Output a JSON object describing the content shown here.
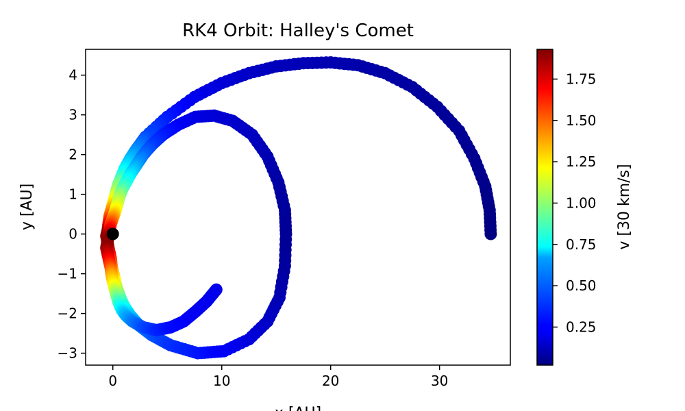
{
  "chart_data": {
    "type": "scatter",
    "title": "RK4 Orbit: Halley's Comet",
    "xlabel": "x [AU]",
    "ylabel": "y [AU]",
    "xlim": [
      -2.5,
      36.5
    ],
    "ylim": [
      -3.3,
      4.65
    ],
    "xticks": [
      0,
      10,
      20,
      30
    ],
    "yticks": [
      -3,
      -2,
      -1,
      0,
      1,
      2,
      3,
      4
    ],
    "grid": false,
    "colormap": "jet",
    "colorbar": {
      "label": "v [30 km/s]",
      "range": [
        0.02,
        1.93
      ],
      "ticks": [
        "0.25",
        "0.50",
        "0.75",
        "1.00",
        "1.25",
        "1.50",
        "1.75"
      ],
      "tick_values": [
        0.25,
        0.5,
        0.75,
        1.0,
        1.25,
        1.5,
        1.75
      ]
    },
    "sun": {
      "x": 0.0,
      "y": 0.0,
      "color": "#000000"
    },
    "series": [
      {
        "x": [
          34.7,
          34.6,
          34.2,
          33.2,
          31.8,
          29.8,
          27.5,
          25.0,
          22.5,
          20.0,
          17.5,
          15.0,
          12.5,
          10.0,
          7.5,
          5.0,
          3.0,
          2.2,
          1.6,
          1.1,
          0.8,
          0.5,
          0.3,
          0.1,
          -0.1,
          -0.3,
          -0.4,
          -0.5,
          -0.6,
          -0.4,
          -0.2,
          -0.1,
          0.1,
          0.3,
          0.6,
          1.0,
          1.6,
          2.4,
          3.6,
          5.3,
          7.8,
          10.2,
          12.5,
          14.2,
          15.3,
          15.8,
          15.9,
          15.8,
          15.2,
          14.2,
          12.8,
          11.0,
          9.3,
          7.6,
          6.0,
          4.6,
          3.6,
          2.8,
          2.2,
          1.7,
          1.3,
          0.9,
          0.6,
          0.4,
          0.2,
          0.0,
          -0.2,
          -0.3,
          -0.4,
          -0.5,
          -0.6,
          -0.4,
          -0.2,
          -0.1,
          0.1,
          0.3,
          0.5,
          0.8,
          1.2,
          1.8,
          2.8,
          4.0,
          5.3,
          6.5,
          7.6,
          8.6,
          9.5
        ],
        "y": [
          0.0,
          0.6,
          1.2,
          1.9,
          2.6,
          3.2,
          3.7,
          4.05,
          4.25,
          4.32,
          4.3,
          4.22,
          4.05,
          3.8,
          3.45,
          2.95,
          2.45,
          2.15,
          1.9,
          1.65,
          1.45,
          1.25,
          1.05,
          0.85,
          0.65,
          0.45,
          0.25,
          0.05,
          -0.05,
          -0.35,
          -0.6,
          -0.85,
          -1.05,
          -1.3,
          -1.55,
          -1.8,
          -2.05,
          -2.3,
          -2.55,
          -2.8,
          -3.0,
          -2.95,
          -2.65,
          -2.2,
          -1.6,
          -0.8,
          0.0,
          0.6,
          1.3,
          1.95,
          2.5,
          2.85,
          2.98,
          2.95,
          2.75,
          2.5,
          2.25,
          2.0,
          1.75,
          1.55,
          1.35,
          1.15,
          0.95,
          0.75,
          0.55,
          0.4,
          0.25,
          0.1,
          -0.05,
          -0.2,
          -0.35,
          -0.6,
          -0.85,
          -1.05,
          -1.3,
          -1.5,
          -1.7,
          -1.9,
          -2.05,
          -2.2,
          -2.35,
          -2.42,
          -2.35,
          -2.2,
          -1.95,
          -1.7,
          -1.4
        ],
        "c": [
          0.02,
          0.03,
          0.04,
          0.05,
          0.06,
          0.07,
          0.08,
          0.09,
          0.1,
          0.11,
          0.12,
          0.13,
          0.15,
          0.18,
          0.22,
          0.3,
          0.4,
          0.5,
          0.6,
          0.7,
          0.8,
          0.95,
          1.05,
          1.2,
          1.35,
          1.5,
          1.7,
          1.9,
          1.92,
          1.85,
          1.65,
          1.45,
          1.3,
          1.15,
          0.95,
          0.8,
          0.65,
          0.52,
          0.42,
          0.35,
          0.3,
          0.25,
          0.2,
          0.16,
          0.12,
          0.08,
          0.06,
          0.07,
          0.09,
          0.11,
          0.14,
          0.16,
          0.18,
          0.2,
          0.24,
          0.3,
          0.36,
          0.45,
          0.55,
          0.65,
          0.75,
          0.85,
          1.0,
          1.12,
          1.25,
          1.4,
          1.55,
          1.7,
          1.85,
          1.92,
          1.9,
          1.75,
          1.55,
          1.38,
          1.22,
          1.05,
          0.88,
          0.72,
          0.6,
          0.5,
          0.4,
          0.33,
          0.28,
          0.26,
          0.24,
          0.23,
          0.22
        ]
      }
    ]
  }
}
